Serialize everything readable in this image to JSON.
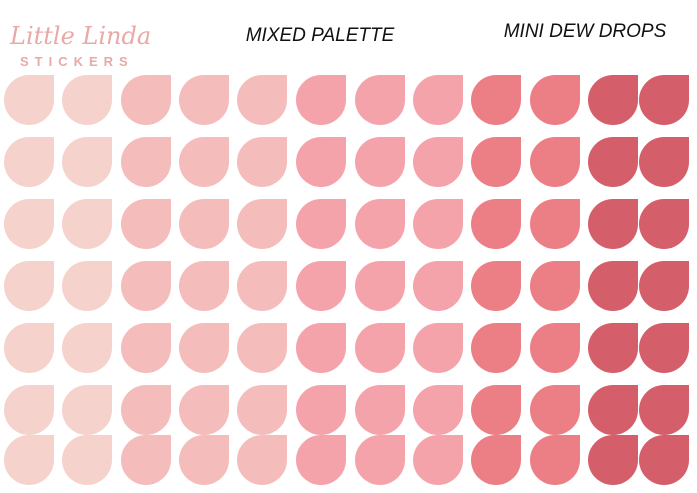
{
  "logo": {
    "name": "Little Linda",
    "tagline": "STICKERS"
  },
  "title": "MIXED PALETTE",
  "subtitle": "MINI DEW DROPS"
}
